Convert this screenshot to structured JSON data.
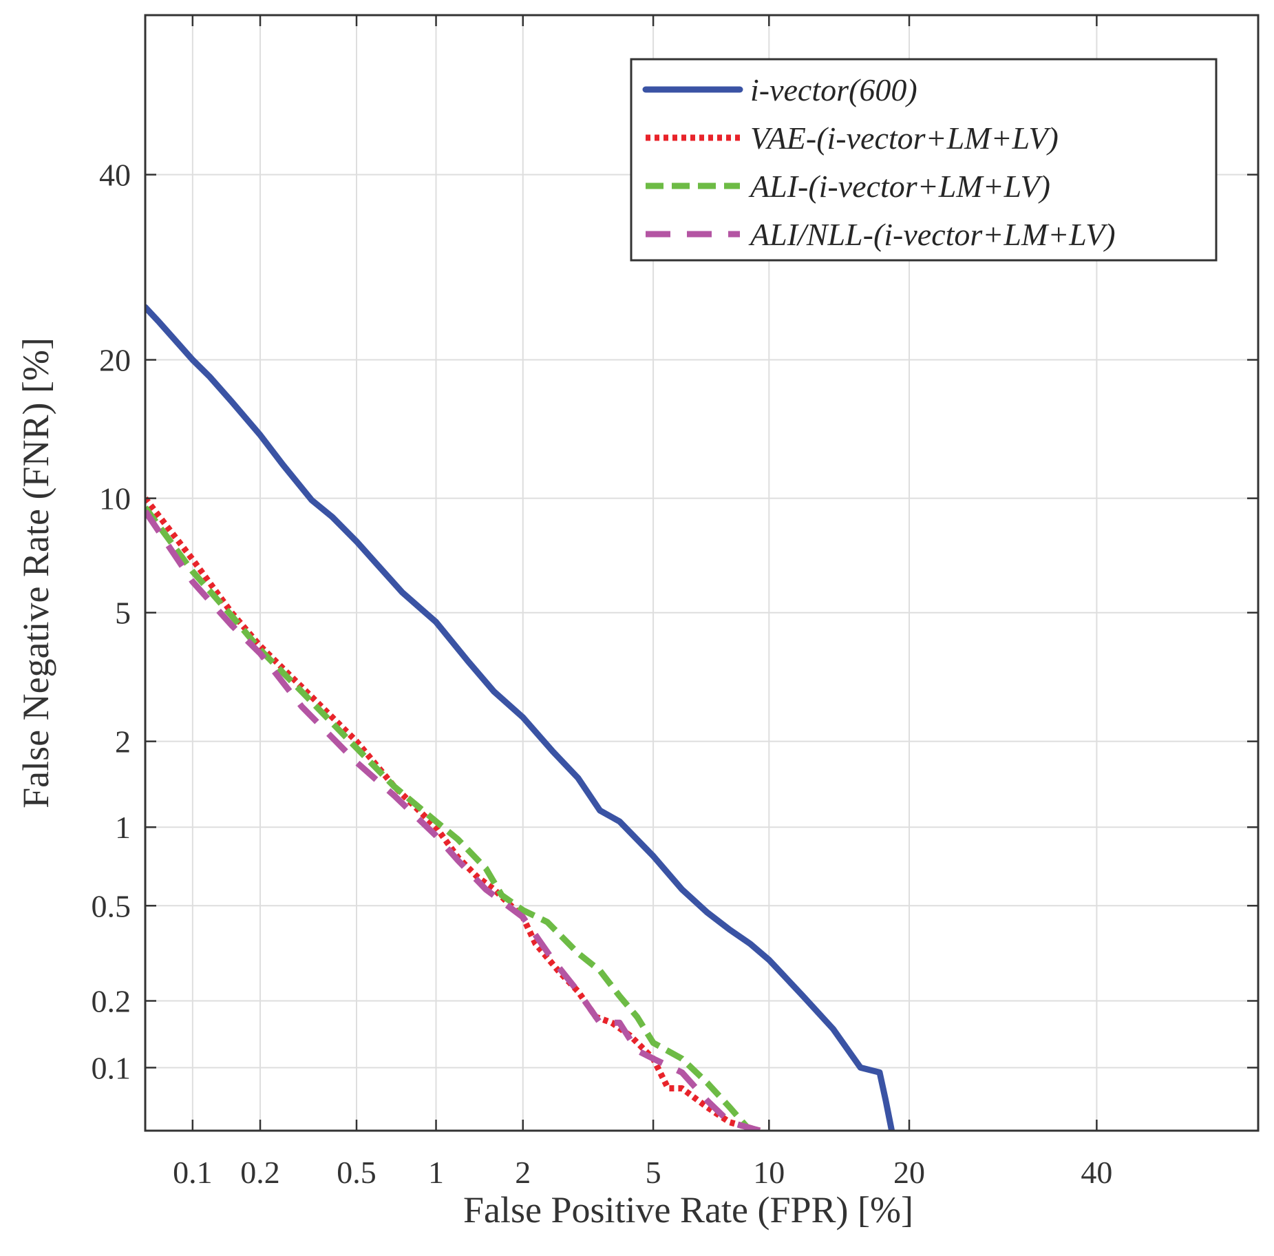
{
  "chart_data": {
    "type": "line",
    "title": "",
    "xlabel": "False Positive Rate (FPR) [%]",
    "ylabel": "False Negative Rate (FNR) [%]",
    "x_scale": "normal-deviate (probit), percent",
    "y_scale": "normal-deviate (probit), percent",
    "xlim": [
      0.06,
      60
    ],
    "ylim": [
      0.05,
      60
    ],
    "grid": true,
    "legend_position": "top-right",
    "x_ticks": [
      0.1,
      0.2,
      0.5,
      1,
      2,
      5,
      10,
      20,
      40
    ],
    "x_tick_labels": [
      "0.1",
      "0.2",
      "0.5",
      "1",
      "2",
      "5",
      "10",
      "20",
      "40"
    ],
    "y_ticks": [
      0.1,
      0.2,
      0.5,
      1,
      2,
      5,
      10,
      20,
      40
    ],
    "y_tick_labels": [
      "0.1",
      "0.2",
      "0.5",
      "1",
      "2",
      "5",
      "10",
      "20",
      "40"
    ],
    "series": [
      {
        "name": "i-vector(600)",
        "color": "#3a53a4",
        "style": "solid",
        "x": [
          0.06,
          0.07,
          0.1,
          0.12,
          0.15,
          0.2,
          0.25,
          0.33,
          0.4,
          0.5,
          0.6,
          0.75,
          1,
          1.3,
          1.6,
          2,
          2.5,
          3,
          3.5,
          4,
          5,
          6,
          7,
          8,
          9,
          10,
          12,
          14,
          16,
          17.5,
          18,
          18.5
        ],
        "y": [
          25,
          23.5,
          20,
          18.5,
          16.5,
          14,
          12,
          9.9,
          9,
          7.8,
          6.8,
          5.7,
          4.7,
          3.6,
          2.9,
          2.4,
          1.85,
          1.5,
          1.15,
          1.05,
          0.78,
          0.58,
          0.47,
          0.4,
          0.35,
          0.3,
          0.21,
          0.15,
          0.1,
          0.095,
          0.07,
          0.05
        ]
      },
      {
        "name": "VAE-(i-vector+LM+LV)",
        "color": "#e8232a",
        "style": "dotted",
        "x": [
          0.06,
          0.1,
          0.15,
          0.2,
          0.3,
          0.5,
          0.7,
          1,
          1.2,
          1.4,
          1.6,
          2,
          2.2,
          2.6,
          3,
          3.4,
          3.8,
          4.3,
          5,
          5.5,
          6,
          7,
          8,
          9.5
        ],
        "y": [
          10,
          7,
          5,
          4,
          3,
          2,
          1.4,
          1,
          0.77,
          0.65,
          0.58,
          0.45,
          0.35,
          0.27,
          0.22,
          0.17,
          0.16,
          0.14,
          0.11,
          0.08,
          0.08,
          0.065,
          0.055,
          0.05
        ]
      },
      {
        "name": "ALI-(i-vector+LM+LV)",
        "color": "#6dbb45",
        "style": "dashed",
        "x": [
          0.06,
          0.1,
          0.15,
          0.2,
          0.3,
          0.5,
          0.7,
          1,
          1.2,
          1.5,
          1.7,
          2,
          2.4,
          3,
          3.5,
          4,
          4.5,
          5,
          6,
          7,
          8,
          9
        ],
        "y": [
          9.5,
          6.5,
          4.9,
          3.9,
          2.9,
          1.9,
          1.4,
          1.05,
          0.9,
          0.7,
          0.55,
          0.48,
          0.43,
          0.32,
          0.27,
          0.21,
          0.17,
          0.13,
          0.11,
          0.085,
          0.065,
          0.05
        ]
      },
      {
        "name": "ALI/NLL-(i-vector+LM+LV)",
        "color": "#b455a3",
        "style": "long-dashed",
        "x": [
          0.06,
          0.1,
          0.15,
          0.2,
          0.3,
          0.5,
          0.7,
          1,
          1.2,
          1.5,
          2,
          2.5,
          3,
          3.5,
          4,
          4.5,
          5,
          6,
          7,
          8,
          9.5
        ],
        "y": [
          9.3,
          6.1,
          4.6,
          3.8,
          2.6,
          1.7,
          1.3,
          0.93,
          0.75,
          0.58,
          0.45,
          0.3,
          0.22,
          0.16,
          0.16,
          0.12,
          0.11,
          0.095,
          0.07,
          0.055,
          0.05
        ]
      }
    ]
  }
}
